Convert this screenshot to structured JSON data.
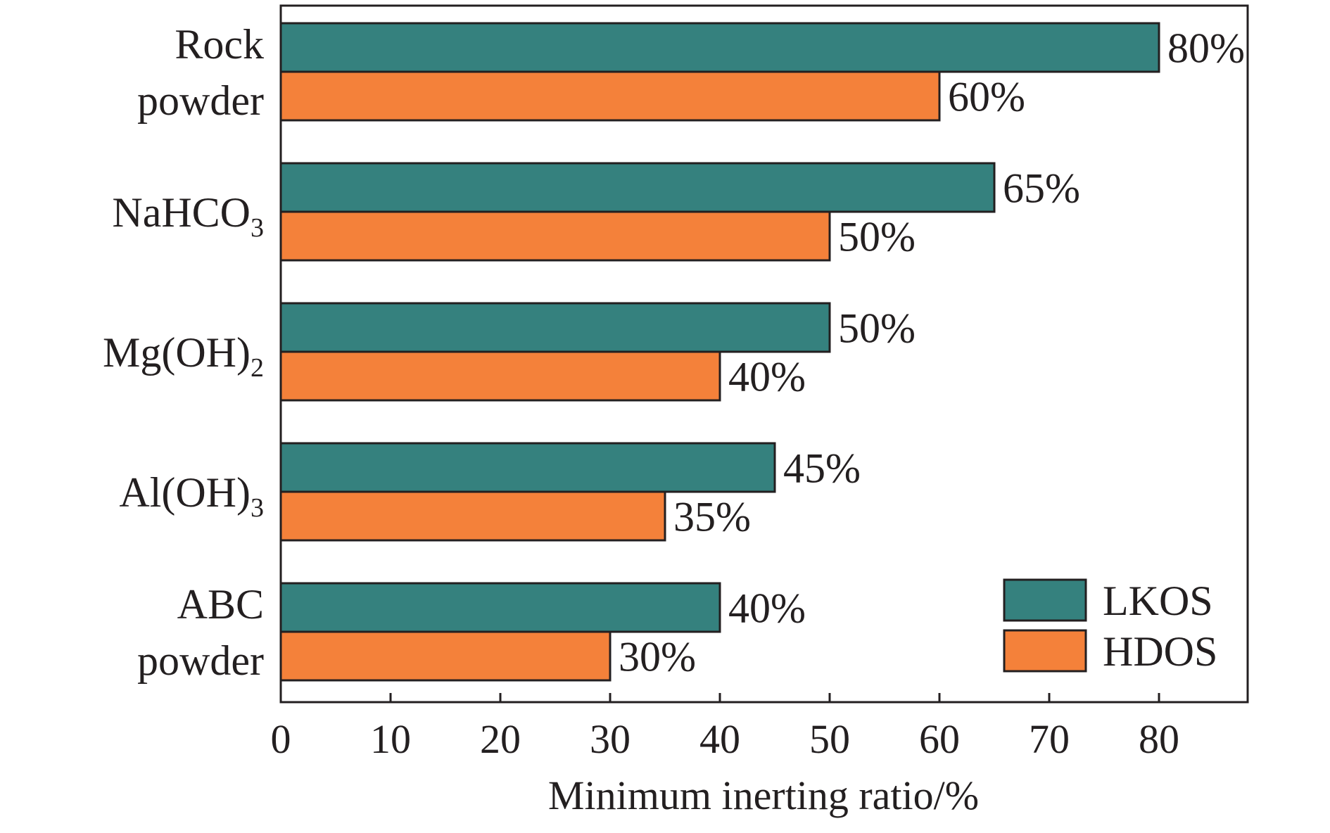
{
  "chart_data": {
    "type": "bar",
    "orientation": "horizontal",
    "categories": [
      {
        "lines": [
          {
            "text": "Rock"
          },
          {
            "text": "powder"
          }
        ]
      },
      {
        "lines": [
          {
            "text": "NaHCO",
            "sub": "3"
          }
        ]
      },
      {
        "lines": [
          {
            "text": "Mg(OH)",
            "sub": "2"
          }
        ]
      },
      {
        "lines": [
          {
            "text": "Al(OH)",
            "sub": "3"
          }
        ]
      },
      {
        "lines": [
          {
            "text": "ABC"
          },
          {
            "text": "powder"
          }
        ]
      }
    ],
    "series": [
      {
        "name": "LKOS",
        "color": "#35817e",
        "values": [
          80,
          65,
          50,
          45,
          40
        ],
        "labels": [
          "80%",
          "65%",
          "50%",
          "45%",
          "40%"
        ]
      },
      {
        "name": "HDOS",
        "color": "#f4813a",
        "values": [
          60,
          50,
          40,
          35,
          30
        ],
        "labels": [
          "60%",
          "50%",
          "40%",
          "35%",
          "30%"
        ]
      }
    ],
    "xlabel": "Minimum inerting ratio/%",
    "xlim": [
      0,
      88
    ],
    "xticks": [
      0,
      10,
      20,
      30,
      40,
      50,
      60,
      70,
      80
    ],
    "grid": false,
    "legend_position": "bottom-right"
  }
}
